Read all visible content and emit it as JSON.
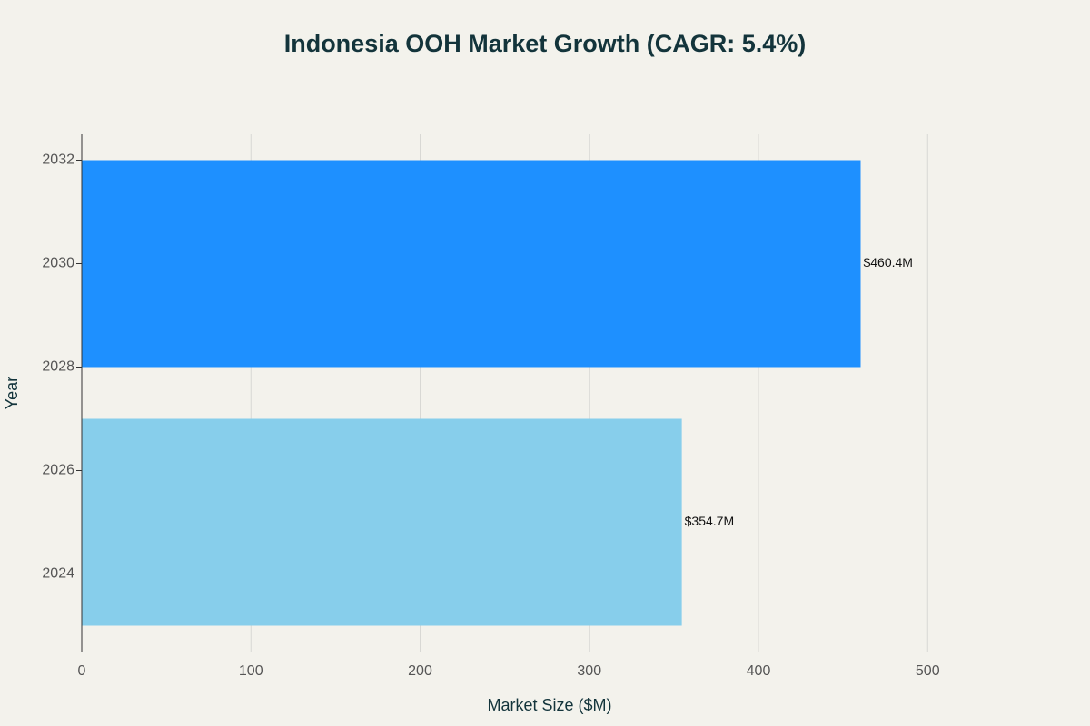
{
  "chart_data": {
    "type": "bar",
    "orientation": "horizontal",
    "title": "Indonesia OOH Market Growth (CAGR: 5.4%)",
    "x_label": "Market Size ($M)",
    "y_label": "Year",
    "y": [
      2025,
      2030
    ],
    "values": [
      354.7,
      460.4
    ],
    "value_labels": [
      "$354.7M",
      "$460.4M"
    ],
    "colors": [
      "#87CEEB",
      "#1E90FF"
    ],
    "xlim": [
      0,
      560
    ],
    "xticks": [
      0,
      100,
      200,
      300,
      400,
      500
    ],
    "ylim": [
      2022.5,
      2032.5
    ],
    "yticks": [
      2024,
      2026,
      2028,
      2030,
      2032
    ],
    "grid": true
  }
}
